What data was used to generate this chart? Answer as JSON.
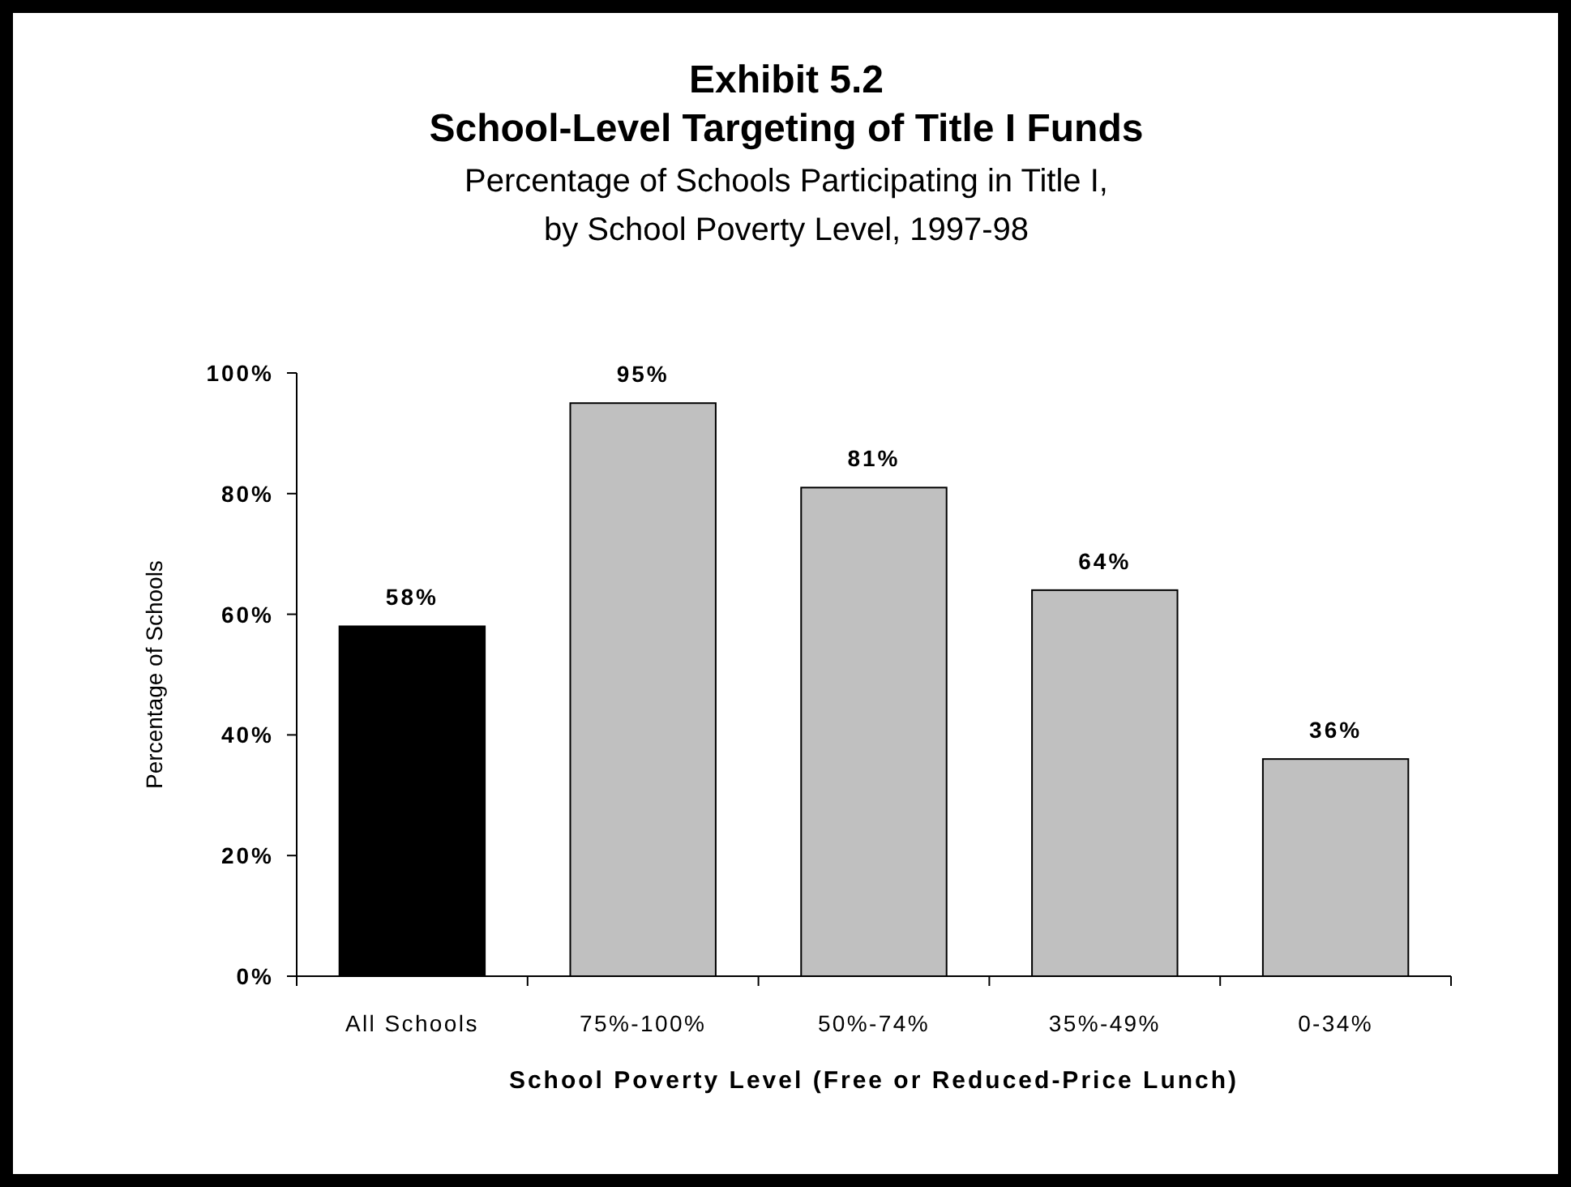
{
  "chart_data": {
    "type": "bar",
    "title": "Exhibit 5.2\nSchool-Level Targeting of Title I Funds",
    "subtitle": "Percentage of Schools Participating in Title I,\nby School Poverty Level, 1997-98",
    "xlabel": "School Poverty Level (Free or Reduced-Price Lunch)",
    "ylabel": "Percentage of Schools",
    "categories": [
      "All Schools",
      "75%-100%",
      "50%-74%",
      "35%-49%",
      "0-34%"
    ],
    "values": [
      58,
      95,
      81,
      64,
      36
    ],
    "colors": [
      "#000000",
      "#c0c0c0",
      "#c0c0c0",
      "#c0c0c0",
      "#c0c0c0"
    ],
    "value_labels": [
      "58%",
      "95%",
      "81%",
      "64%",
      "36%"
    ],
    "ylim": [
      0,
      100
    ],
    "yticks": [
      {
        "value": 0,
        "label": "0%"
      },
      {
        "value": 20,
        "label": "20%"
      },
      {
        "value": 40,
        "label": "40%"
      },
      {
        "value": 60,
        "label": "60%"
      },
      {
        "value": 80,
        "label": "80%"
      },
      {
        "value": 100,
        "label": "100%"
      }
    ],
    "grid": false
  }
}
